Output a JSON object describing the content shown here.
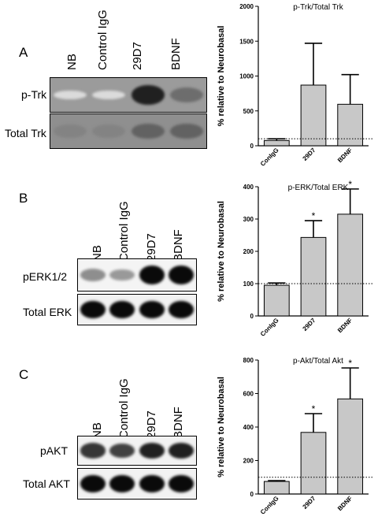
{
  "panels": [
    {
      "letter": "A",
      "lanes": [
        "NB",
        "Control IgG",
        "29D7",
        "BDNF"
      ],
      "rows": [
        "p-Trk",
        "Total Trk"
      ],
      "band_levels": [
        [
          0.05,
          0.05,
          0.9,
          0.55
        ],
        [
          0.45,
          0.45,
          0.6,
          0.6
        ]
      ]
    },
    {
      "letter": "B",
      "lanes": [
        "NB",
        "Control IgG",
        "29D7",
        "BDNF"
      ],
      "rows": [
        "pERK1/2",
        "Total ERK"
      ],
      "band_levels": [
        [
          0.4,
          0.35,
          1.0,
          1.0
        ],
        [
          1.0,
          1.0,
          1.0,
          1.0
        ]
      ]
    },
    {
      "letter": "C",
      "lanes": [
        "NB",
        "Control IgG",
        "29D7",
        "BDNF"
      ],
      "rows": [
        "pAKT",
        "Total AKT"
      ],
      "band_levels": [
        [
          0.8,
          0.75,
          0.9,
          0.9
        ],
        [
          1.0,
          1.0,
          1.0,
          1.0
        ]
      ]
    }
  ],
  "chart_data": [
    {
      "type": "bar",
      "title": "p-Trk/Total Trk",
      "ylabel": "% relative to Neurobasal",
      "categories": [
        "ConIgG",
        "29D7",
        "BDNF"
      ],
      "values": [
        75,
        870,
        595
      ],
      "errors": [
        25,
        600,
        425
      ],
      "significance": [
        "",
        "",
        ""
      ],
      "ylim": [
        0,
        2000
      ],
      "yticks": [
        0,
        500,
        1000,
        1500,
        2000
      ],
      "reference_line": 100
    },
    {
      "type": "bar",
      "title": "p-ERK/Total ERK",
      "ylabel": "% relative to Neurobasal",
      "categories": [
        "ConIgG",
        "29D7",
        "BDNF"
      ],
      "values": [
        95,
        243,
        315
      ],
      "errors": [
        7,
        52,
        78
      ],
      "significance": [
        "",
        "*",
        "*"
      ],
      "ylim": [
        0,
        400
      ],
      "yticks": [
        0,
        100,
        200,
        300,
        400
      ],
      "reference_line": 100
    },
    {
      "type": "bar",
      "title": "p-Akt/Total Akt",
      "ylabel": "% relative to Neurobasal",
      "categories": [
        "ConIgG",
        "29D7",
        "BDNF"
      ],
      "values": [
        75,
        368,
        568
      ],
      "errors": [
        5,
        112,
        185
      ],
      "significance": [
        "",
        "*",
        "*"
      ],
      "ylim": [
        0,
        800
      ],
      "yticks": [
        0,
        200,
        400,
        600,
        800
      ],
      "reference_line": 100
    }
  ]
}
